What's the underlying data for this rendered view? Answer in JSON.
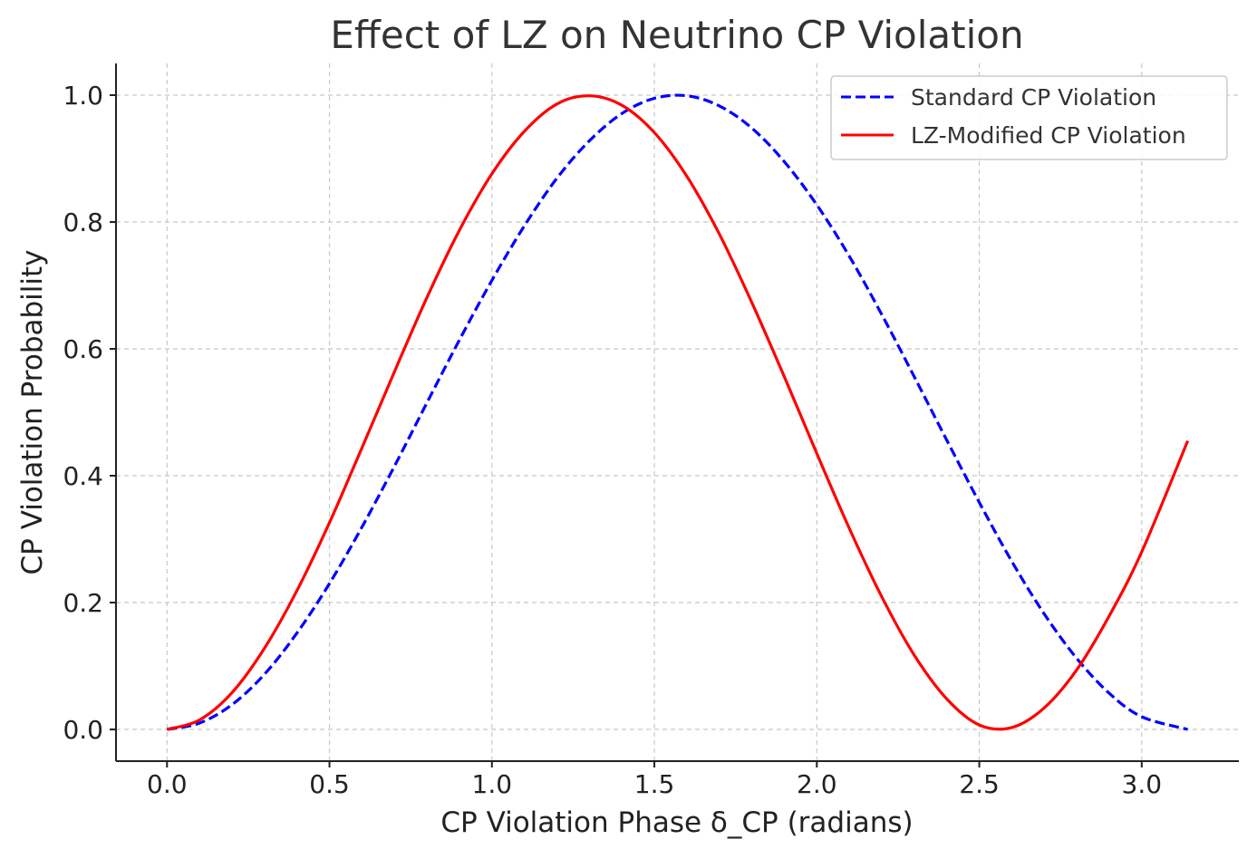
{
  "chart_data": {
    "type": "line",
    "title": "Effect of LZ on Neutrino CP Violation",
    "xlabel": "CP Violation Phase δ_CP (radians)",
    "ylabel": "CP Violation Probability",
    "xlim": [
      -0.157,
      3.299
    ],
    "ylim": [
      -0.05,
      1.05
    ],
    "xticks": [
      0.0,
      0.5,
      1.0,
      1.5,
      2.0,
      2.5,
      3.0
    ],
    "xtick_labels": [
      "0.0",
      "0.5",
      "1.0",
      "1.5",
      "2.0",
      "2.5",
      "3.0"
    ],
    "yticks": [
      0.0,
      0.2,
      0.4,
      0.6,
      0.8,
      1.0
    ],
    "ytick_labels": [
      "0.0",
      "0.2",
      "0.4",
      "0.6",
      "0.8",
      "1.0"
    ],
    "grid": true,
    "legend_position": "top-right",
    "x": [
      0.0,
      0.1,
      0.2,
      0.3,
      0.4,
      0.5,
      0.6,
      0.7,
      0.8,
      0.9,
      1.0,
      1.1,
      1.2,
      1.3,
      1.4,
      1.5,
      1.6,
      1.7,
      1.8,
      1.9,
      2.0,
      2.1,
      2.2,
      2.3,
      2.4,
      2.5,
      2.6,
      2.7,
      2.8,
      2.9,
      3.0,
      3.1416
    ],
    "series": [
      {
        "name": "Standard CP Violation",
        "color": "#0000ff",
        "style": "dashed",
        "values": [
          0.0,
          0.01,
          0.039,
          0.087,
          0.152,
          0.23,
          0.319,
          0.415,
          0.515,
          0.614,
          0.708,
          0.794,
          0.869,
          0.928,
          0.971,
          0.995,
          0.999,
          0.983,
          0.948,
          0.895,
          0.827,
          0.746,
          0.654,
          0.556,
          0.456,
          0.358,
          0.265,
          0.182,
          0.112,
          0.057,
          0.02,
          0.0
        ]
      },
      {
        "name": "LZ-Modified CP Violation",
        "color": "#ff0000",
        "style": "solid",
        "values": [
          0.0,
          0.015,
          0.058,
          0.128,
          0.219,
          0.326,
          0.444,
          0.564,
          0.681,
          0.787,
          0.876,
          0.943,
          0.986,
          0.999,
          0.984,
          0.941,
          0.872,
          0.781,
          0.673,
          0.556,
          0.435,
          0.317,
          0.209,
          0.117,
          0.048,
          0.007,
          0.003,
          0.034,
          0.094,
          0.179,
          0.28,
          0.455
        ]
      }
    ]
  }
}
